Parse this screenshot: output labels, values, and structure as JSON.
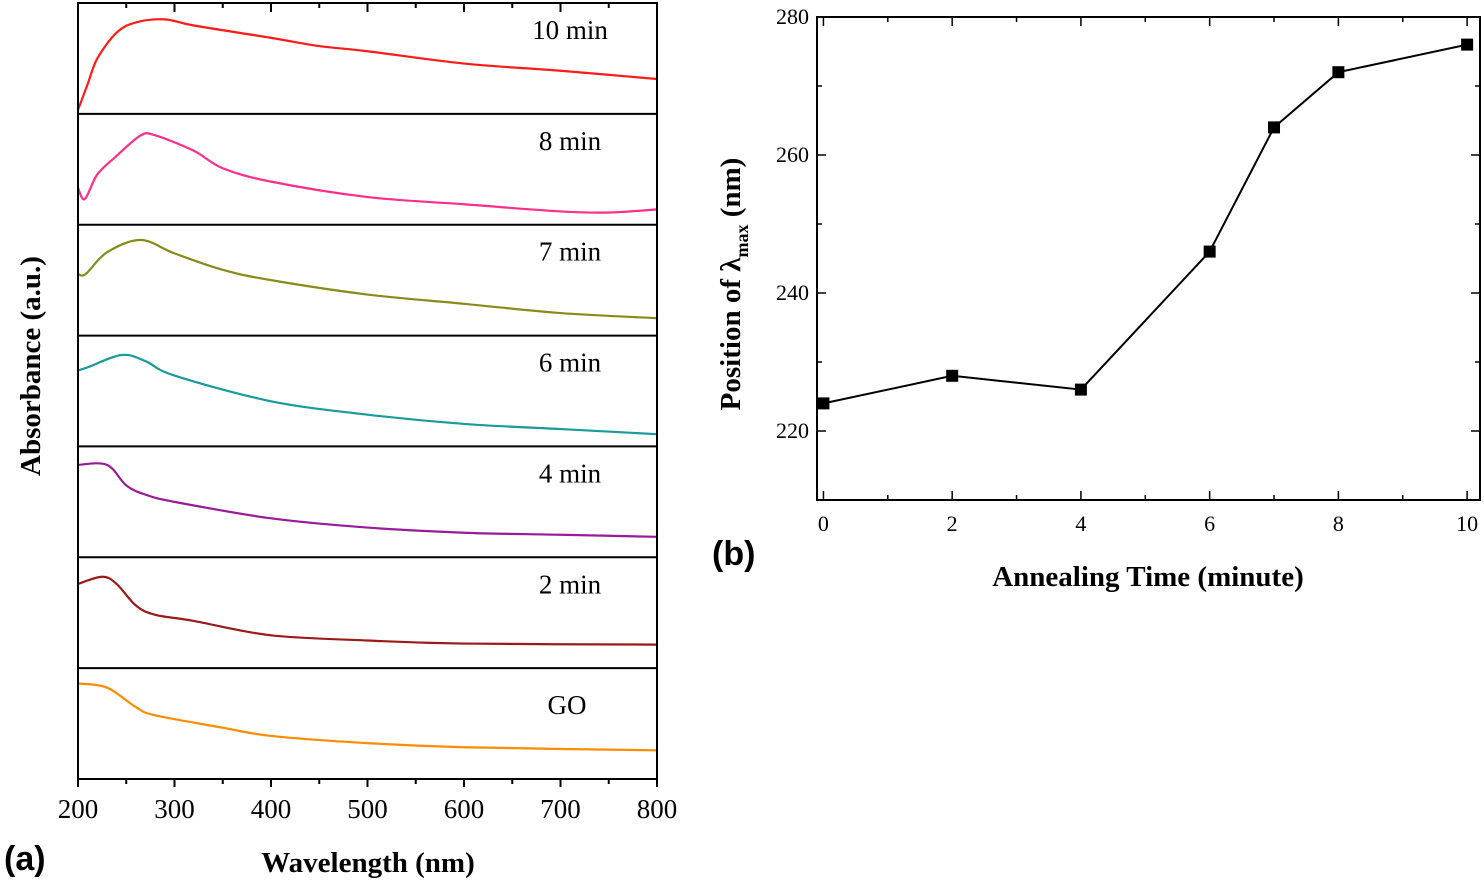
{
  "chart_data": [
    {
      "panel_label": "(a)",
      "type": "line",
      "layout": "stacked-offset panels",
      "xlabel": "Wavelength (nm)",
      "ylabel": "Absorbance (a.u.)",
      "xlim": [
        200,
        800
      ],
      "xticks": [
        200,
        300,
        400,
        500,
        600,
        700,
        800
      ],
      "y_note_relative_scale": [
        0,
        1
      ],
      "series": [
        {
          "name": "10 min",
          "color": "#ff1a1a",
          "x": [
            200,
            210,
            220,
            240,
            260,
            290,
            320,
            400,
            450,
            500,
            600,
            700,
            800
          ],
          "y": [
            0,
            0.25,
            0.5,
            0.75,
            0.85,
            0.88,
            0.82,
            0.7,
            0.62,
            0.57,
            0.45,
            0.38,
            0.3
          ]
        },
        {
          "name": "8 min",
          "color": "#ff2d8c",
          "x": [
            200,
            207,
            220,
            240,
            265,
            280,
            320,
            350,
            400,
            500,
            600,
            700,
            750,
            800
          ],
          "y": [
            0.32,
            0.21,
            0.45,
            0.63,
            0.83,
            0.83,
            0.68,
            0.51,
            0.38,
            0.23,
            0.16,
            0.09,
            0.08,
            0.11
          ]
        },
        {
          "name": "7 min",
          "color": "#8a8a1a",
          "x": [
            200,
            208,
            230,
            265,
            300,
            350,
            400,
            500,
            600,
            700,
            800
          ],
          "y": [
            0.56,
            0.56,
            0.77,
            0.89,
            0.76,
            0.6,
            0.5,
            0.36,
            0.27,
            0.18,
            0.13
          ]
        },
        {
          "name": "6 min",
          "color": "#1a9a9a",
          "x": [
            200,
            210,
            245,
            270,
            300,
            400,
            500,
            600,
            700,
            800
          ],
          "y": [
            0.7,
            0.73,
            0.85,
            0.79,
            0.65,
            0.4,
            0.27,
            0.18,
            0.13,
            0.08
          ]
        },
        {
          "name": "4 min",
          "color": "#9a1a9a",
          "x": [
            200,
            230,
            250,
            270,
            300,
            400,
            500,
            600,
            700,
            800
          ],
          "y": [
            0.86,
            0.86,
            0.66,
            0.57,
            0.5,
            0.34,
            0.25,
            0.2,
            0.18,
            0.16
          ]
        },
        {
          "name": "2 min",
          "color": "#9a1a1a",
          "x": [
            200,
            225,
            240,
            260,
            280,
            320,
            400,
            500,
            600,
            800
          ],
          "y": [
            0.78,
            0.85,
            0.78,
            0.57,
            0.48,
            0.42,
            0.28,
            0.23,
            0.2,
            0.19
          ]
        },
        {
          "name": "GO",
          "color": "#ff8c00",
          "x": [
            200,
            230,
            260,
            280,
            350,
            400,
            500,
            600,
            800
          ],
          "y": [
            0.89,
            0.85,
            0.66,
            0.58,
            0.46,
            0.38,
            0.31,
            0.27,
            0.24
          ]
        }
      ]
    },
    {
      "panel_label": "(b)",
      "type": "line",
      "marker": "square",
      "xlabel": "Annealing Time (minute)",
      "ylabel_prefix": "Position of λ",
      "ylabel_sub": "max",
      "ylabel_suffix": " (nm)",
      "xlim": [
        -0.1,
        10.2
      ],
      "ylim": [
        210,
        280
      ],
      "xticks": [
        0,
        2,
        4,
        6,
        8,
        10
      ],
      "yticks": [
        220,
        240,
        260,
        280
      ],
      "color": "#000000",
      "x": [
        0,
        2,
        4,
        6,
        7,
        8,
        10
      ],
      "y": [
        224,
        228,
        226,
        246,
        264,
        272,
        276
      ]
    }
  ]
}
